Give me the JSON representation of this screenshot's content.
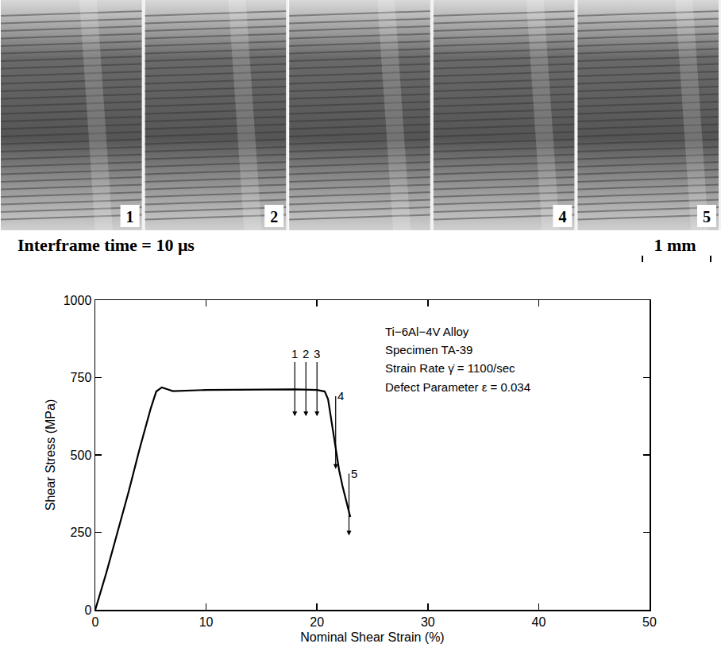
{
  "photo_strip": {
    "frames": [
      "1",
      "2",
      null,
      "4",
      "5"
    ],
    "caption": "Interframe time = 10 μs",
    "scale_bar": "1 mm"
  },
  "chart_data": {
    "type": "line",
    "x_label": "Nominal Shear Strain (%)",
    "y_label": "Shear Stress (MPa)",
    "x": [
      0,
      1,
      2,
      3,
      4,
      5,
      5.5,
      6,
      6.5,
      7,
      10,
      15,
      18,
      20,
      20.7,
      21,
      21.3,
      21.7,
      22,
      22.3,
      22.7,
      23
    ],
    "values": [
      0,
      120,
      250,
      380,
      520,
      650,
      705,
      718,
      712,
      706,
      710,
      712,
      712,
      710,
      705,
      680,
      610,
      520,
      450,
      400,
      340,
      300
    ],
    "color": "#000000",
    "xlim": [
      0,
      50
    ],
    "xticks": [
      0,
      10,
      20,
      30,
      40,
      50
    ],
    "ylim": [
      0,
      1000
    ],
    "yticks": [
      0,
      250,
      500,
      750,
      1000
    ],
    "grid": false,
    "annotations": [
      "Ti−6Al−4V Alloy",
      "Specimen TA-39",
      "Strain Rate γ̇ = 1100/sec",
      "Defect Parameter ε = 0.034"
    ],
    "frame_marks": [
      {
        "label": "1",
        "x": 18,
        "y_start": 800,
        "y_end": 625
      },
      {
        "label": "2",
        "x": 19,
        "y_start": 800,
        "y_end": 625
      },
      {
        "label": "3",
        "x": 20,
        "y_start": 800,
        "y_end": 625
      },
      {
        "label": "4",
        "x": 21.4,
        "y_start": 690,
        "y_end": 455
      },
      {
        "label": "5",
        "x": 22.6,
        "y_start": 440,
        "y_end": 240
      }
    ]
  }
}
